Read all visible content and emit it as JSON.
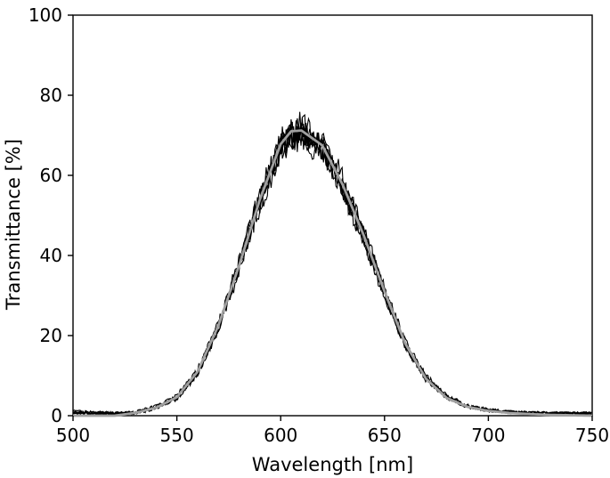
{
  "chart_data": {
    "type": "line",
    "title": "",
    "xlabel": "Wavelength [nm]",
    "ylabel": "Transmittance [%]",
    "xlim": [
      500,
      750
    ],
    "ylim": [
      0,
      100
    ],
    "x_ticks": [
      500,
      550,
      600,
      650,
      700,
      750
    ],
    "y_ticks": [
      0,
      20,
      40,
      60,
      80,
      100
    ],
    "x_tick_labels": [
      "500",
      "550",
      "600",
      "650",
      "700",
      "750"
    ],
    "y_tick_labels": [
      "0",
      "20",
      "40",
      "60",
      "80",
      "100"
    ],
    "grid": false,
    "legend": "none",
    "colors": {
      "measured": "#000000",
      "fit": "#a0a0a0"
    },
    "x": [
      500,
      510,
      520,
      530,
      540,
      550,
      560,
      570,
      580,
      590,
      600,
      605,
      610,
      620,
      630,
      640,
      650,
      660,
      670,
      680,
      690,
      700,
      710,
      720,
      730,
      740,
      750
    ],
    "series": [
      {
        "style": "noisy",
        "values": [
          1.0,
          0.8,
          0.6,
          0.6,
          1.8,
          4.2,
          10.5,
          21.5,
          36.5,
          52.5,
          65.5,
          68.5,
          69.0,
          65.5,
          56.0,
          44.0,
          30.0,
          17.5,
          9.0,
          4.5,
          2.2,
          1.3,
          0.9,
          0.7,
          0.6,
          0.6,
          0.6
        ]
      },
      {
        "style": "noisy",
        "values": [
          0.6,
          0.5,
          0.5,
          0.8,
          2.2,
          4.8,
          11.2,
          22.8,
          38.0,
          54.5,
          68.0,
          71.0,
          71.5,
          67.5,
          57.5,
          45.0,
          31.0,
          18.0,
          9.5,
          4.8,
          2.4,
          1.4,
          0.9,
          0.7,
          0.6,
          0.6,
          0.6
        ]
      },
      {
        "style": "noisy",
        "values": [
          0.9,
          0.7,
          0.6,
          0.7,
          2.0,
          4.5,
          10.8,
          22.0,
          37.2,
          53.5,
          66.5,
          69.8,
          70.2,
          66.8,
          57.0,
          44.5,
          30.5,
          17.8,
          9.2,
          4.6,
          2.3,
          1.3,
          0.9,
          0.7,
          0.6,
          0.6,
          0.6
        ]
      },
      {
        "style": "noisy",
        "values": [
          0.7,
          0.6,
          0.5,
          0.9,
          2.4,
          5.0,
          11.5,
          23.0,
          38.5,
          55.0,
          69.0,
          72.5,
          73.0,
          69.0,
          59.0,
          46.0,
          31.8,
          18.5,
          9.8,
          5.0,
          2.5,
          1.5,
          1.0,
          0.8,
          0.6,
          0.6,
          0.6
        ]
      },
      {
        "style": "noisy",
        "values": [
          0.8,
          0.6,
          0.5,
          0.6,
          1.9,
          4.4,
          10.6,
          21.8,
          36.8,
          53.0,
          67.0,
          70.5,
          71.0,
          67.0,
          57.2,
          44.8,
          30.8,
          17.9,
          9.3,
          4.7,
          2.3,
          1.4,
          0.9,
          0.7,
          0.6,
          0.6,
          0.6
        ]
      },
      {
        "style": "noisy",
        "values": [
          1.1,
          0.8,
          0.7,
          0.8,
          2.1,
          4.6,
          11.0,
          22.3,
          37.6,
          54.0,
          67.5,
          70.0,
          70.5,
          66.5,
          56.5,
          44.2,
          30.2,
          17.6,
          9.1,
          4.6,
          2.3,
          1.3,
          0.9,
          0.7,
          0.6,
          0.6,
          0.6
        ]
      },
      {
        "style": "smooth",
        "color": "#a0a0a0",
        "values": [
          0.0,
          0.0,
          0.0,
          0.7,
          2.0,
          4.6,
          11.0,
          22.5,
          37.5,
          54.0,
          67.8,
          71.0,
          71.2,
          67.5,
          57.5,
          45.0,
          31.0,
          18.0,
          9.2,
          4.4,
          2.2,
          1.2,
          0.7,
          0.4,
          0.2,
          0.1,
          0.0
        ]
      }
    ]
  }
}
